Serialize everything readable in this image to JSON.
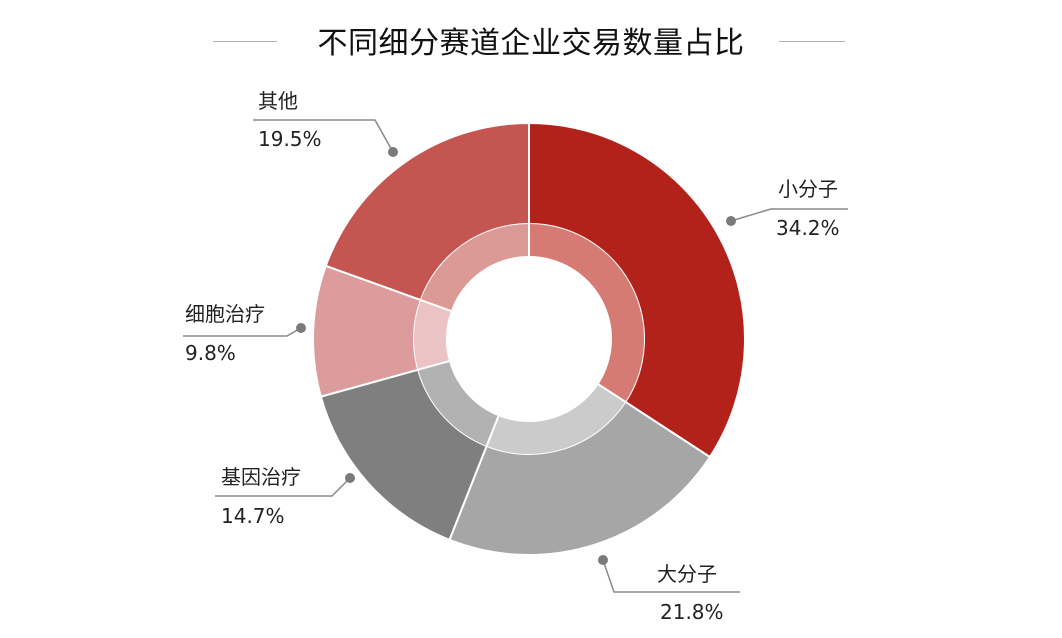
{
  "chart_data": {
    "type": "pie",
    "title": "不同细分赛道企业交易数量占比",
    "categories": [
      "小分子",
      "大分子",
      "基因治疗",
      "细胞治疗",
      "其他"
    ],
    "values": [
      34.2,
      21.8,
      14.7,
      9.8,
      19.5
    ],
    "value_labels": [
      "34.2%",
      "21.8%",
      "14.7%",
      "9.8%",
      "19.5%"
    ],
    "colors": [
      "#b3221a",
      "#a6a6a6",
      "#7f7f7f",
      "#dc9c9c",
      "#c55551"
    ],
    "inner_ring_colors": [
      "#d67a74",
      "#cbcbcb",
      "#b2b2b2",
      "#eac4c4",
      "#dc9a97"
    ],
    "legend": "none"
  }
}
